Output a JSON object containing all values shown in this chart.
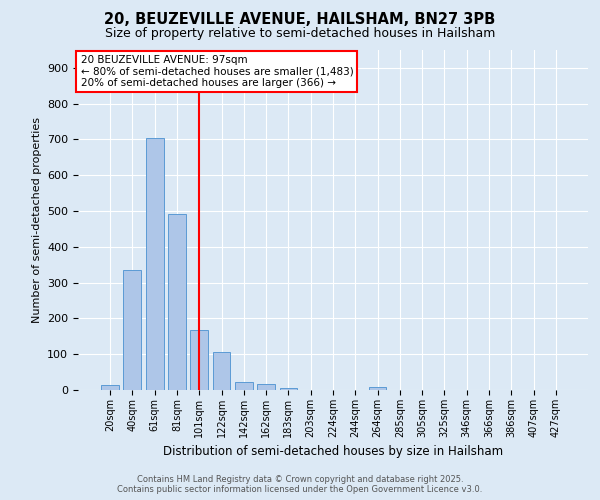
{
  "title_line1": "20, BEUZEVILLE AVENUE, HAILSHAM, BN27 3PB",
  "title_line2": "Size of property relative to semi-detached houses in Hailsham",
  "xlabel": "Distribution of semi-detached houses by size in Hailsham",
  "ylabel": "Number of semi-detached properties",
  "categories": [
    "20sqm",
    "40sqm",
    "61sqm",
    "81sqm",
    "101sqm",
    "122sqm",
    "142sqm",
    "162sqm",
    "183sqm",
    "203sqm",
    "224sqm",
    "244sqm",
    "264sqm",
    "285sqm",
    "305sqm",
    "325sqm",
    "346sqm",
    "366sqm",
    "386sqm",
    "407sqm",
    "427sqm"
  ],
  "values": [
    13,
    335,
    703,
    493,
    167,
    105,
    22,
    16,
    5,
    1,
    0,
    0,
    8,
    0,
    0,
    0,
    0,
    0,
    0,
    0,
    0
  ],
  "bar_color": "#aec6e8",
  "bar_edge_color": "#5b9bd5",
  "vline_x": 4.0,
  "vline_color": "red",
  "annotation_title": "20 BEUZEVILLE AVENUE: 97sqm",
  "annotation_line2": "← 80% of semi-detached houses are smaller (1,483)",
  "annotation_line3": "20% of semi-detached houses are larger (366) →",
  "ylim": [
    0,
    950
  ],
  "yticks": [
    0,
    100,
    200,
    300,
    400,
    500,
    600,
    700,
    800,
    900
  ],
  "bg_color": "#dce9f5",
  "footer_line1": "Contains HM Land Registry data © Crown copyright and database right 2025.",
  "footer_line2": "Contains public sector information licensed under the Open Government Licence v3.0."
}
